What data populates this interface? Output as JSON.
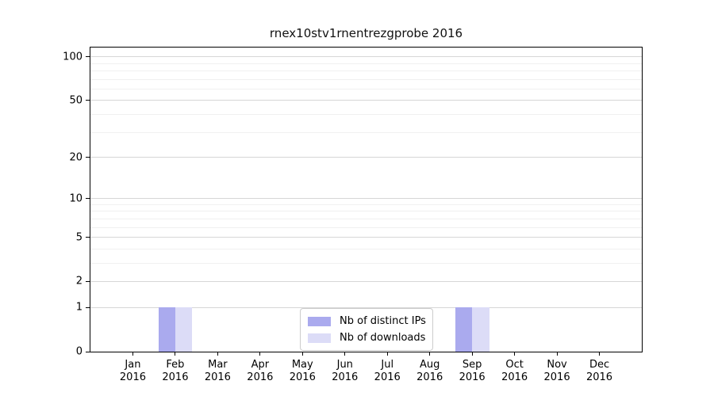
{
  "figure": {
    "background": "#ffffff"
  },
  "chart_data": {
    "type": "bar",
    "title": "rnex10stv1rnentrezgprobe 2016",
    "x_months": [
      "Jan",
      "Feb",
      "Mar",
      "Apr",
      "May",
      "Jun",
      "Jul",
      "Aug",
      "Sep",
      "Oct",
      "Nov",
      "Dec"
    ],
    "x_year": "2016",
    "categories": [
      "Jan 2016",
      "Feb 2016",
      "Mar 2016",
      "Apr 2016",
      "May 2016",
      "Jun 2016",
      "Jul 2016",
      "Aug 2016",
      "Sep 2016",
      "Oct 2016",
      "Nov 2016",
      "Dec 2016"
    ],
    "series": [
      {
        "name": "Nb of distinct IPs",
        "slug": "distinct-ips",
        "color": "#aaaaee",
        "values": [
          0,
          1,
          0,
          0,
          0,
          0,
          0,
          0,
          1,
          0,
          0,
          0
        ]
      },
      {
        "name": "Nb of downloads",
        "slug": "downloads",
        "color": "#dcdcf7",
        "values": [
          0,
          1,
          0,
          0,
          0,
          0,
          0,
          0,
          1,
          0,
          0,
          0
        ]
      }
    ],
    "yscale": "log1p",
    "ylim": [
      0,
      116
    ],
    "yticks_major": [
      0,
      1,
      2,
      5,
      10,
      20,
      50,
      100
    ],
    "yticks_minor": [
      3,
      4,
      6,
      7,
      8,
      9,
      30,
      40,
      60,
      70,
      80,
      90
    ],
    "grid": "horizontal",
    "legend": {
      "position": "inside-bottom-center",
      "entries": [
        "Nb of distinct IPs",
        "Nb of downloads"
      ]
    },
    "colors": {
      "axis": "#000000",
      "grid_major": "#d6d6d6",
      "grid_minor": "#f0f0f0"
    }
  }
}
